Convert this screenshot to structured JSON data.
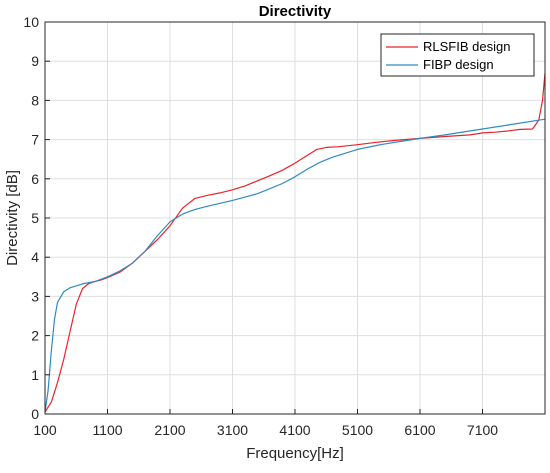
{
  "chart_data": {
    "type": "line",
    "title": "Directivity",
    "xlabel": "Frequency[Hz]",
    "ylabel": "Directivity [dB]",
    "xlim": [
      100,
      8100
    ],
    "ylim": [
      0,
      10
    ],
    "xticks": [
      100,
      1100,
      2100,
      3100,
      4100,
      5100,
      6100,
      7100
    ],
    "xtick_labels": [
      "100",
      "1100",
      "2100",
      "3100",
      "4100",
      "5100",
      "6100",
      "7100"
    ],
    "yticks": [
      0,
      1,
      2,
      3,
      4,
      5,
      6,
      7,
      8,
      9,
      10
    ],
    "ytick_labels": [
      "0",
      "1",
      "2",
      "3",
      "4",
      "5",
      "6",
      "7",
      "8",
      "9",
      "10"
    ],
    "grid": true,
    "legend_position": "top-right",
    "colors": {
      "RLSFIB design": "#e8242b",
      "FIBP design": "#2e8bc0"
    },
    "series": [
      {
        "name": "RLSFIB design",
        "color": "#e8242b",
        "x": [
          100,
          200,
          300,
          400,
          500,
          600,
          700,
          800,
          900,
          1000,
          1100,
          1300,
          1500,
          1700,
          1900,
          2100,
          2300,
          2500,
          2700,
          2900,
          3100,
          3300,
          3500,
          3700,
          3900,
          4100,
          4300,
          4450,
          4600,
          4800,
          5100,
          5400,
          5700,
          6100,
          6500,
          6900,
          7100,
          7300,
          7500,
          7700,
          7900,
          8000,
          8060,
          8100
        ],
        "y": [
          0.05,
          0.3,
          0.8,
          1.4,
          2.1,
          2.8,
          3.2,
          3.33,
          3.38,
          3.42,
          3.48,
          3.62,
          3.85,
          4.15,
          4.45,
          4.8,
          5.25,
          5.5,
          5.58,
          5.64,
          5.72,
          5.82,
          5.95,
          6.08,
          6.22,
          6.4,
          6.6,
          6.75,
          6.8,
          6.82,
          6.87,
          6.93,
          6.98,
          7.03,
          7.08,
          7.12,
          7.17,
          7.19,
          7.22,
          7.26,
          7.27,
          7.5,
          8.0,
          8.7
        ]
      },
      {
        "name": "FIBP design",
        "color": "#2e8bc0",
        "x": [
          100,
          150,
          200,
          250,
          300,
          400,
          500,
          700,
          900,
          1100,
          1300,
          1500,
          1700,
          1900,
          2100,
          2300,
          2500,
          2700,
          3100,
          3500,
          3900,
          4100,
          4300,
          4500,
          4700,
          5100,
          5500,
          6100,
          6500,
          7100,
          7500,
          8100
        ],
        "y": [
          0.05,
          0.6,
          1.6,
          2.4,
          2.85,
          3.12,
          3.22,
          3.32,
          3.38,
          3.5,
          3.65,
          3.85,
          4.15,
          4.55,
          4.9,
          5.1,
          5.22,
          5.3,
          5.45,
          5.62,
          5.88,
          6.05,
          6.25,
          6.42,
          6.55,
          6.75,
          6.88,
          7.03,
          7.12,
          7.27,
          7.37,
          7.52
        ]
      }
    ]
  }
}
